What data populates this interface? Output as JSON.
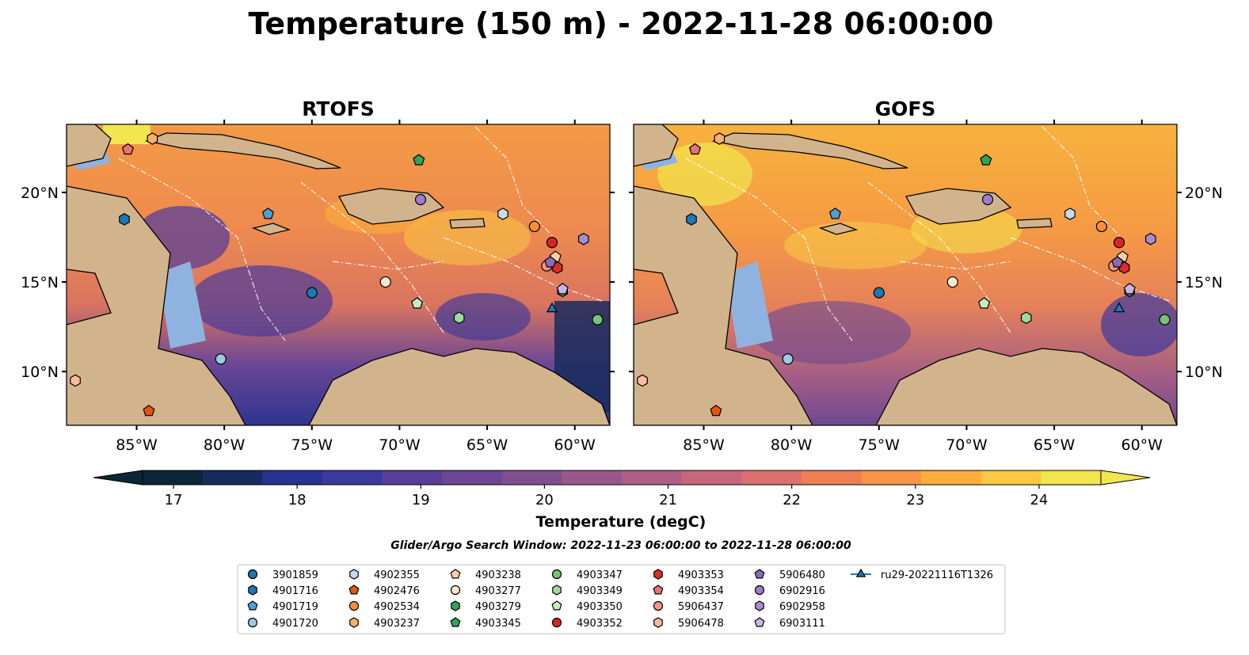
{
  "title": "Temperature (150 m) - 2022-11-28 06:00:00",
  "panels": [
    {
      "title": "RTOFS",
      "variant": "rtofs"
    },
    {
      "title": "GOFS",
      "variant": "gofs"
    }
  ],
  "lon_range": [
    -89,
    -58
  ],
  "lat_range": [
    7,
    23.8
  ],
  "lon_ticks": [
    {
      "value": -85,
      "label": "85°W"
    },
    {
      "value": -80,
      "label": "80°W"
    },
    {
      "value": -75,
      "label": "75°W"
    },
    {
      "value": -70,
      "label": "70°W"
    },
    {
      "value": -65,
      "label": "65°W"
    },
    {
      "value": -60,
      "label": "60°W"
    }
  ],
  "lat_ticks": [
    {
      "value": 20,
      "label": "20°N"
    },
    {
      "value": 15,
      "label": "15°N"
    },
    {
      "value": 10,
      "label": "10°N"
    }
  ],
  "colorbar": {
    "label": "Temperature (degC)",
    "min": 16.75,
    "max": 24.5,
    "ticks": [
      17,
      18,
      19,
      20,
      21,
      22,
      23,
      24
    ],
    "colors": [
      "#0b2637",
      "#172c5e",
      "#26348f",
      "#3c399e",
      "#573f98",
      "#6c4792",
      "#824f8e",
      "#9a578b",
      "#b05f84",
      "#c6677c",
      "#dc7071",
      "#ec8053",
      "#f69546",
      "#fbae3c",
      "#f9c844",
      "#f2e54f"
    ],
    "extend": "both",
    "colormap": "thermal"
  },
  "search_window": "Glider/Argo Search Window: 2022-11-23 06:00:00 to 2022-11-28 06:00:00",
  "floats": [
    {
      "id": "3901859",
      "marker": "circle",
      "color": "#1f77b4",
      "lon": -75,
      "lat": 14.4
    },
    {
      "id": "4901716",
      "marker": "hexagon",
      "color": "#1f77b4",
      "lon": -85.7,
      "lat": 18.5
    },
    {
      "id": "4901719",
      "marker": "pentagon",
      "color": "#4aa0d8",
      "lon": -77.5,
      "lat": 18.8
    },
    {
      "id": "4901720",
      "marker": "circle",
      "color": "#9ecae1",
      "lon": -80.2,
      "lat": 10.7
    },
    {
      "id": "4902355",
      "marker": "hexagon",
      "color": "#c6dbef",
      "lon": -64.1,
      "lat": 18.8
    },
    {
      "id": "4902476",
      "marker": "pentagon",
      "color": "#e6550d",
      "lon": -84.3,
      "lat": 7.8
    },
    {
      "id": "4902534",
      "marker": "circle",
      "color": "#fd8d3c",
      "lon": -62.3,
      "lat": 18.1
    },
    {
      "id": "4903237",
      "marker": "hexagon",
      "color": "#fdae6b",
      "lon": -84.1,
      "lat": 23.0
    },
    {
      "id": "4903238",
      "marker": "pentagon",
      "color": "#fdd0a2",
      "lon": -61.1,
      "lat": 16.4
    },
    {
      "id": "4903277",
      "marker": "circle",
      "color": "#fee6ce",
      "lon": -70.8,
      "lat": 15.0
    },
    {
      "id": "4903279",
      "marker": "hexagon",
      "color": "#31a354",
      "lon": -60.7,
      "lat": 14.5
    },
    {
      "id": "4903345",
      "marker": "pentagon",
      "color": "#31a354",
      "lon": -68.9,
      "lat": 21.8
    },
    {
      "id": "4903347",
      "marker": "circle",
      "color": "#74c476",
      "lon": -58.7,
      "lat": 12.9
    },
    {
      "id": "4903349",
      "marker": "hexagon",
      "color": "#a1d99b",
      "lon": -66.6,
      "lat": 13.0
    },
    {
      "id": "4903350",
      "marker": "pentagon",
      "color": "#c7e9c0",
      "lon": -69.0,
      "lat": 13.8
    },
    {
      "id": "4903352",
      "marker": "circle",
      "color": "#d62728",
      "lon": -61.3,
      "lat": 17.2
    },
    {
      "id": "4903353",
      "marker": "hexagon",
      "color": "#de2d26",
      "lon": -61.0,
      "lat": 15.8
    },
    {
      "id": "4903354",
      "marker": "pentagon",
      "color": "#e7727a",
      "lon": -85.5,
      "lat": 22.4
    },
    {
      "id": "5906437",
      "marker": "circle",
      "color": "#f4938a",
      "lon": -61.6,
      "lat": 15.9
    },
    {
      "id": "5906478",
      "marker": "hexagon",
      "color": "#fcbba1",
      "lon": -88.5,
      "lat": 9.5
    },
    {
      "id": "5906480",
      "marker": "pentagon",
      "color": "#8b6bb8",
      "lon": -61.4,
      "lat": 16.1
    },
    {
      "id": "6902916",
      "marker": "circle",
      "color": "#9e7cd1",
      "lon": -68.8,
      "lat": 19.6
    },
    {
      "id": "6902958",
      "marker": "hexagon",
      "color": "#a78bd4",
      "lon": -59.5,
      "lat": 17.4
    },
    {
      "id": "6903111",
      "marker": "pentagon",
      "color": "#c9b5e8",
      "lon": -60.7,
      "lat": 14.6
    },
    {
      "id": "ru29-20221116T1326",
      "marker": "triangle",
      "color": "#1f77b4",
      "lon": -61.3,
      "lat": 13.5
    }
  ]
}
